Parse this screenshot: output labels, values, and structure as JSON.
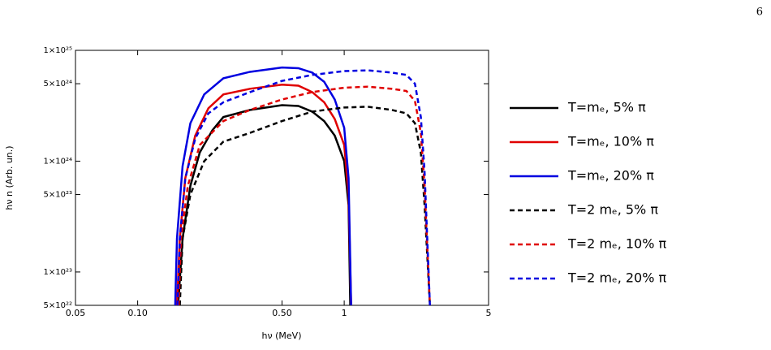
{
  "page_number": "6",
  "chart_data": {
    "type": "line",
    "xlabel": "hν (MeV)",
    "ylabel": "hν n (Arb. un.)",
    "xscale": "log",
    "yscale": "log",
    "xlim": [
      0.05,
      5
    ],
    "ylim": [
      5e+22,
      1e+25
    ],
    "xticks": [
      0.05,
      {
        "value": 0.1,
        "label": "0.10"
      },
      {
        "value": 0.5,
        "label": "0.50"
      },
      1,
      5
    ],
    "yticks": [
      {
        "value": 5e+22,
        "label": "5×10²²"
      },
      {
        "value": 1e+23,
        "label": "1×10²³"
      },
      {
        "value": 5e+23,
        "label": "5×10²³"
      },
      {
        "value": 1e+24,
        "label": "1×10²⁴"
      },
      {
        "value": 5e+24,
        "label": "5×10²⁴"
      },
      {
        "value": 1e+25,
        "label": "1×10²⁵"
      }
    ],
    "series": [
      {
        "name": "T=mₑ, 5% π",
        "color": "#000000",
        "style": "solid",
        "x": [
          0.157,
          0.165,
          0.18,
          0.2,
          0.23,
          0.26,
          0.35,
          0.5,
          0.6,
          0.7,
          0.8,
          0.9,
          1.0,
          1.05,
          1.07
        ],
        "values": [
          5e+22,
          2e+23,
          6e+23,
          1.2e+24,
          1.9e+24,
          2.5e+24,
          2.9e+24,
          3.2e+24,
          3.15e+24,
          2.8e+24,
          2.3e+24,
          1.7e+24,
          1e+24,
          4e+23,
          5e+22
        ]
      },
      {
        "name": "T=mₑ, 10% π",
        "color": "#e00000",
        "style": "solid",
        "x": [
          0.155,
          0.16,
          0.17,
          0.19,
          0.22,
          0.26,
          0.35,
          0.5,
          0.6,
          0.7,
          0.8,
          0.9,
          1.0,
          1.05,
          1.08
        ],
        "values": [
          5e+22,
          2e+23,
          7e+23,
          1.7e+24,
          3e+24,
          4e+24,
          4.5e+24,
          4.9e+24,
          4.8e+24,
          4.2e+24,
          3.4e+24,
          2.4e+24,
          1.4e+24,
          5e+23,
          5e+22
        ]
      },
      {
        "name": "T=mₑ, 20% π",
        "color": "#0000e0",
        "style": "solid",
        "x": [
          0.152,
          0.155,
          0.165,
          0.18,
          0.21,
          0.26,
          0.35,
          0.5,
          0.6,
          0.7,
          0.8,
          0.9,
          1.0,
          1.05,
          1.08
        ],
        "values": [
          5e+22,
          2e+23,
          9e+23,
          2.2e+24,
          4e+24,
          5.6e+24,
          6.4e+24,
          7e+24,
          6.9e+24,
          6.3e+24,
          5.2e+24,
          3.6e+24,
          2e+24,
          7e+23,
          5e+22
        ]
      },
      {
        "name": "T=2 mₑ, 5% π",
        "color": "#000000",
        "style": "dashed",
        "x": [
          0.16,
          0.165,
          0.18,
          0.21,
          0.26,
          0.35,
          0.5,
          0.7,
          1.0,
          1.3,
          1.7,
          2.0,
          2.2,
          2.35,
          2.45,
          2.6
        ],
        "values": [
          5e+22,
          2e+23,
          5e+23,
          1e+24,
          1.5e+24,
          1.8e+24,
          2.3e+24,
          2.8e+24,
          3.05e+24,
          3.1e+24,
          2.9e+24,
          2.7e+24,
          2.2e+24,
          1.2e+24,
          4e+23,
          5e+22
        ]
      },
      {
        "name": "T=2 mₑ, 10% π",
        "color": "#e00000",
        "style": "dashed",
        "x": [
          0.158,
          0.162,
          0.175,
          0.2,
          0.26,
          0.35,
          0.5,
          0.7,
          1.0,
          1.3,
          1.7,
          2.0,
          2.2,
          2.35,
          2.45,
          2.6
        ],
        "values": [
          5e+22,
          2e+23,
          6e+23,
          1.4e+24,
          2.3e+24,
          2.9e+24,
          3.6e+24,
          4.2e+24,
          4.6e+24,
          4.7e+24,
          4.5e+24,
          4.3e+24,
          3.5e+24,
          1.8e+24,
          6e+23,
          5e+22
        ]
      },
      {
        "name": "T=2 mₑ, 20% π",
        "color": "#0000e0",
        "style": "dashed",
        "x": [
          0.156,
          0.16,
          0.17,
          0.19,
          0.22,
          0.26,
          0.35,
          0.5,
          0.7,
          1.0,
          1.3,
          1.7,
          2.0,
          2.2,
          2.35,
          2.45,
          2.6
        ],
        "values": [
          5e+22,
          2e+23,
          7e+23,
          1.6e+24,
          2.7e+24,
          3.4e+24,
          4.2e+24,
          5.3e+24,
          6e+24,
          6.5e+24,
          6.6e+24,
          6.3e+24,
          6e+24,
          5e+24,
          2.5e+24,
          8e+23,
          5e+22
        ]
      }
    ]
  }
}
